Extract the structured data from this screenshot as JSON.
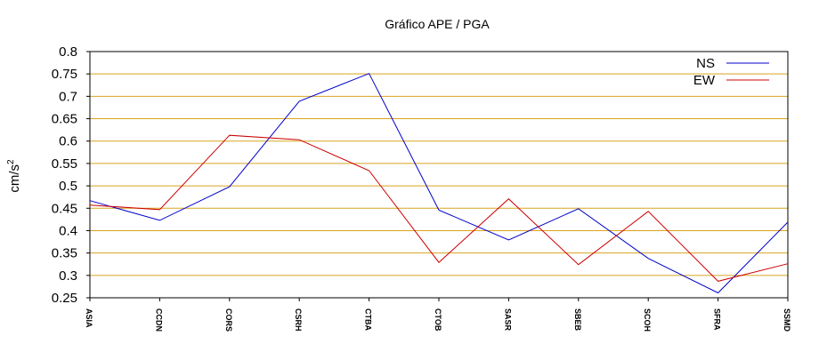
{
  "chart_data": {
    "type": "line",
    "title": "Gráfico  APE / PGA",
    "xlabel": "",
    "ylabel": "cm/s",
    "ylabel_superscript": "2",
    "ylim": [
      0.25,
      0.8
    ],
    "yticks": [
      "0.25",
      "0.3",
      "0.35",
      "0.4",
      "0.45",
      "0.5",
      "0.55",
      "0.6",
      "0.65",
      "0.7",
      "0.75",
      "0.8"
    ],
    "grid": true,
    "grid_color": "#d9a520",
    "legend_position": "top-right",
    "categories": [
      "ASIA",
      "CCDN",
      "CORS",
      "CSRH",
      "CTBA",
      "CTOB",
      "SASR",
      "SBEB",
      "SCOH",
      "SFRA",
      "SSMD"
    ],
    "series": [
      {
        "name": "NS",
        "color": "#0000cc",
        "values": [
          0.467,
          0.423,
          0.498,
          0.689,
          0.751,
          0.446,
          0.379,
          0.449,
          0.338,
          0.261,
          0.419
        ]
      },
      {
        "name": "EW",
        "color": "#cc0000",
        "values": [
          0.457,
          0.447,
          0.613,
          0.603,
          0.534,
          0.329,
          0.471,
          0.324,
          0.443,
          0.287,
          0.326
        ]
      }
    ]
  }
}
